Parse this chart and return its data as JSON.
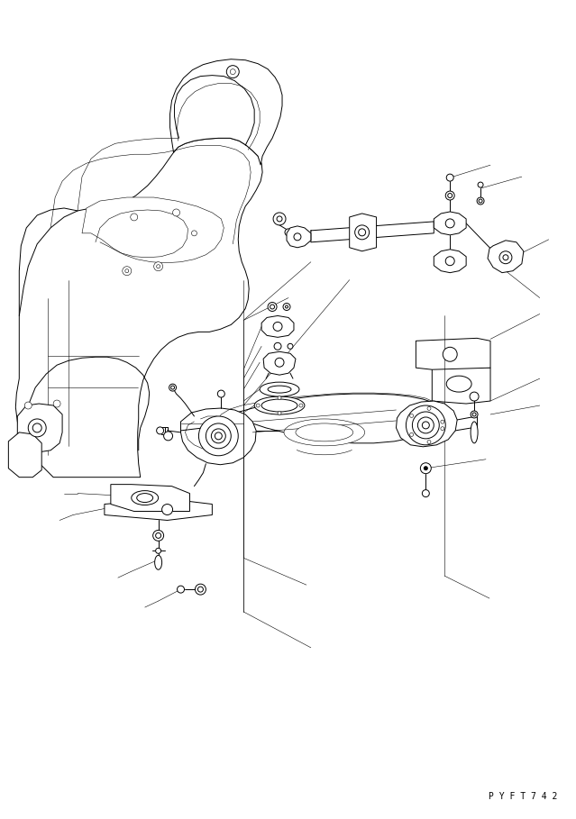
{
  "background_color": "#ffffff",
  "line_color": "#000000",
  "lw": 0.7,
  "tlw": 0.4,
  "wlw": 0.5,
  "watermark": "P Y F T 7 4 2",
  "fig_width": 6.39,
  "fig_height": 9.09,
  "dpi": 100
}
